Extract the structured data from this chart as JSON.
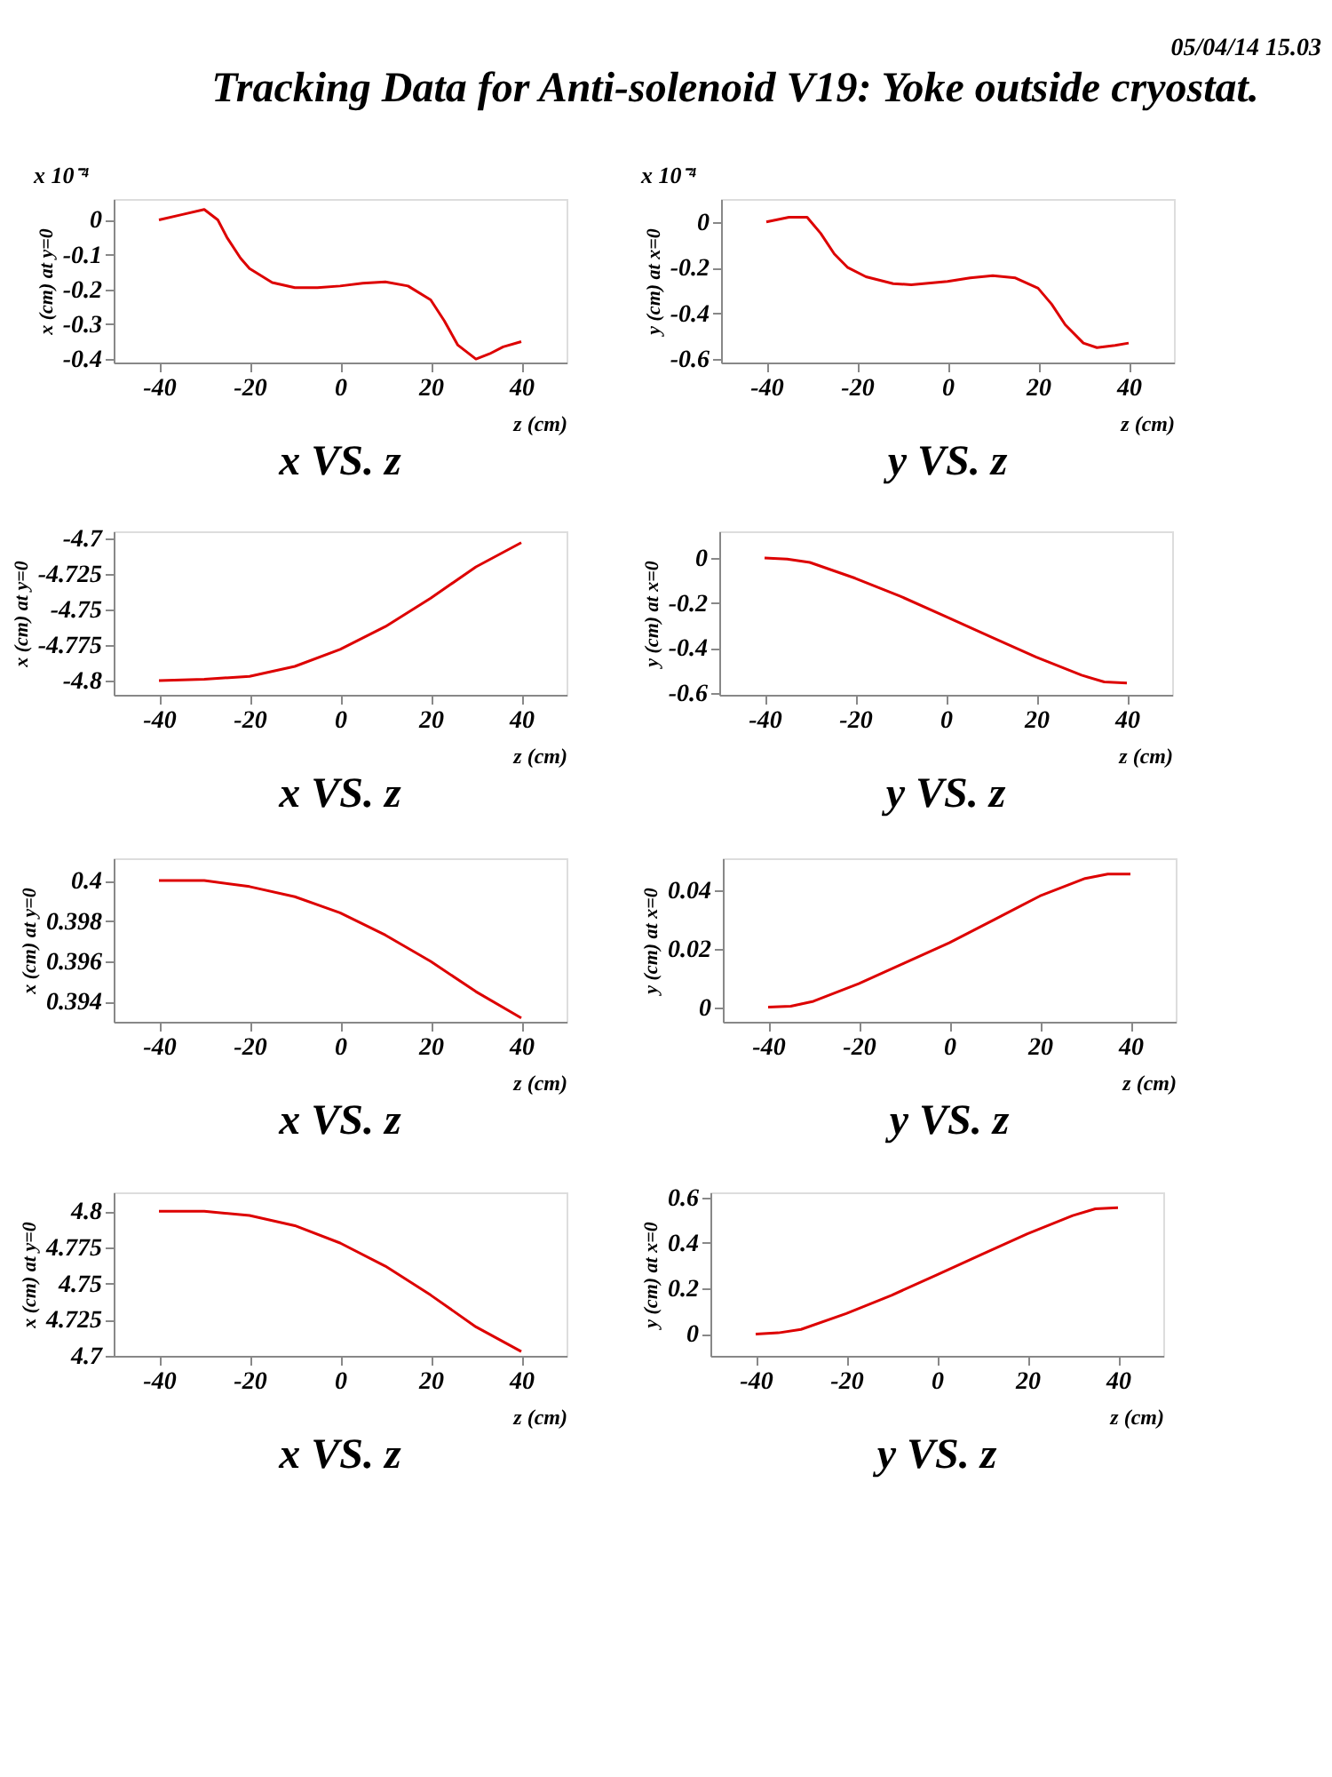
{
  "chart_data": [
    {
      "type": "line",
      "title": "x VS. z",
      "xlabel": "z (cm)",
      "ylabel": "x (cm) at y=0",
      "annotations": [
        "05/04/14   15.03",
        "Tracking Data for Anti-solenoid V19: Yoke outside cryostat.",
        "x 10⁻⁴"
      ],
      "xlim": [
        -50,
        50
      ],
      "xticks": [
        -40,
        -20,
        0,
        20,
        40
      ],
      "ylim": [
        -0.41,
        0.06
      ],
      "yticks": [
        -0.4,
        -0.3,
        -0.2,
        -0.1,
        0
      ],
      "x": [
        -40,
        -35,
        -30,
        -27,
        -25,
        -22,
        -20,
        -15,
        -10,
        -5,
        0,
        5,
        10,
        15,
        20,
        23,
        26,
        30,
        33,
        36,
        40
      ],
      "series": [
        {
          "color": "#dd0000",
          "values": [
            0,
            0.015,
            0.03,
            0.0,
            -0.05,
            -0.11,
            -0.14,
            -0.18,
            -0.195,
            -0.195,
            -0.19,
            -0.182,
            -0.178,
            -0.19,
            -0.23,
            -0.29,
            -0.36,
            -0.4,
            -0.385,
            -0.365,
            -0.35
          ]
        }
      ]
    },
    {
      "type": "line",
      "title": "y VS. z",
      "xlabel": "z (cm)",
      "ylabel": "y (cm) at x=0",
      "annotations": [
        "x 10⁻⁴"
      ],
      "xlim": [
        -50,
        50
      ],
      "xticks": [
        -40,
        -20,
        0,
        20,
        40
      ],
      "ylim": [
        -0.615,
        0.1
      ],
      "yticks": [
        -0.6,
        -0.4,
        -0.2,
        0
      ],
      "x": [
        -40,
        -35,
        -31,
        -28,
        -25,
        -22,
        -18,
        -12,
        -8,
        0,
        5,
        10,
        15,
        20,
        23,
        26,
        30,
        33,
        37,
        40
      ],
      "series": [
        {
          "color": "#dd0000",
          "values": [
            0,
            0.02,
            0.02,
            -0.05,
            -0.14,
            -0.2,
            -0.24,
            -0.27,
            -0.275,
            -0.26,
            -0.245,
            -0.235,
            -0.245,
            -0.29,
            -0.36,
            -0.45,
            -0.53,
            -0.55,
            -0.54,
            -0.53
          ]
        }
      ]
    },
    {
      "type": "line",
      "title": "x VS. z",
      "xlabel": "z (cm)",
      "ylabel": "x (cm) at y=0",
      "xlim": [
        -50,
        50
      ],
      "xticks": [
        -40,
        -20,
        0,
        20,
        40
      ],
      "ylim": [
        -4.81,
        -4.695
      ],
      "yticks": [
        -4.8,
        -4.775,
        -4.75,
        -4.725,
        -4.7
      ],
      "x": [
        -40,
        -30,
        -20,
        -10,
        0,
        10,
        20,
        30,
        40
      ],
      "series": [
        {
          "color": "#dd0000",
          "values": [
            -4.8,
            -4.799,
            -4.797,
            -4.79,
            -4.778,
            -4.762,
            -4.742,
            -4.72,
            -4.703
          ]
        }
      ]
    },
    {
      "type": "line",
      "title": "y VS. z",
      "xlabel": "z (cm)",
      "ylabel": "y (cm) at x=0",
      "xlim": [
        -50,
        50
      ],
      "xticks": [
        -40,
        -20,
        0,
        20,
        40
      ],
      "ylim": [
        -0.607,
        0.118
      ],
      "yticks": [
        -0.6,
        -0.4,
        -0.2,
        0
      ],
      "x": [
        -40,
        -35,
        -30,
        -20,
        -10,
        0,
        10,
        20,
        30,
        35,
        40
      ],
      "series": [
        {
          "color": "#dd0000",
          "values": [
            0,
            -0.005,
            -0.02,
            -0.09,
            -0.17,
            -0.26,
            -0.35,
            -0.44,
            -0.52,
            -0.55,
            -0.555
          ]
        }
      ]
    },
    {
      "type": "line",
      "title": "x VS. z",
      "xlabel": "z (cm)",
      "ylabel": "x (cm) at y=0",
      "xlim": [
        -50,
        50
      ],
      "xticks": [
        -40,
        -20,
        0,
        20,
        40
      ],
      "ylim": [
        0.39301,
        0.4011
      ],
      "yticks": [
        0.394,
        0.396,
        0.398,
        0.4
      ],
      "x": [
        -40,
        -30,
        -20,
        -10,
        0,
        10,
        20,
        30,
        40
      ],
      "series": [
        {
          "color": "#dd0000",
          "values": [
            0.4,
            0.4,
            0.3997,
            0.3992,
            0.3984,
            0.3973,
            0.396,
            0.3945,
            0.3932
          ]
        }
      ]
    },
    {
      "type": "line",
      "title": "y VS. z",
      "xlabel": "z (cm)",
      "ylabel": "y (cm) at x=0",
      "xlim": [
        -50,
        50
      ],
      "xticks": [
        -40,
        -20,
        0,
        20,
        40
      ],
      "ylim": [
        -0.005,
        0.0509
      ],
      "yticks": [
        0,
        0.02,
        0.04
      ],
      "x": [
        -40,
        -35,
        -30,
        -20,
        -10,
        0,
        10,
        20,
        30,
        35,
        40
      ],
      "series": [
        {
          "color": "#dd0000",
          "values": [
            0,
            0.0003,
            0.002,
            0.008,
            0.015,
            0.022,
            0.03,
            0.038,
            0.044,
            0.0455,
            0.0455
          ]
        }
      ]
    },
    {
      "type": "line",
      "title": "x VS. z",
      "xlabel": "z (cm)",
      "ylabel": "x (cm) at y=0",
      "xlim": [
        -50,
        50
      ],
      "xticks": [
        -40,
        -20,
        0,
        20,
        40
      ],
      "ylim": [
        4.7,
        4.813
      ],
      "yticks": [
        4.7,
        4.725,
        4.75,
        4.775,
        4.8
      ],
      "x": [
        -40,
        -30,
        -20,
        -10,
        0,
        10,
        20,
        30,
        40
      ],
      "series": [
        {
          "color": "#dd0000",
          "values": [
            4.8,
            4.8,
            4.797,
            4.79,
            4.778,
            4.762,
            4.742,
            4.72,
            4.703
          ]
        }
      ]
    },
    {
      "type": "line",
      "title": "y VS. z",
      "xlabel": "z (cm)",
      "ylabel": "y (cm) at x=0",
      "xlim": [
        -50,
        50
      ],
      "xticks": [
        -40,
        -20,
        0,
        20,
        40
      ],
      "ylim": [
        -0.096,
        0.622
      ],
      "yticks": [
        0,
        0.2,
        0.4,
        0.6
      ],
      "x": [
        -40,
        -35,
        -30,
        -20,
        -10,
        0,
        10,
        20,
        30,
        35,
        40
      ],
      "series": [
        {
          "color": "#dd0000",
          "values": [
            0,
            0.005,
            0.02,
            0.09,
            0.17,
            0.26,
            0.35,
            0.44,
            0.52,
            0.55,
            0.555
          ]
        }
      ]
    }
  ]
}
